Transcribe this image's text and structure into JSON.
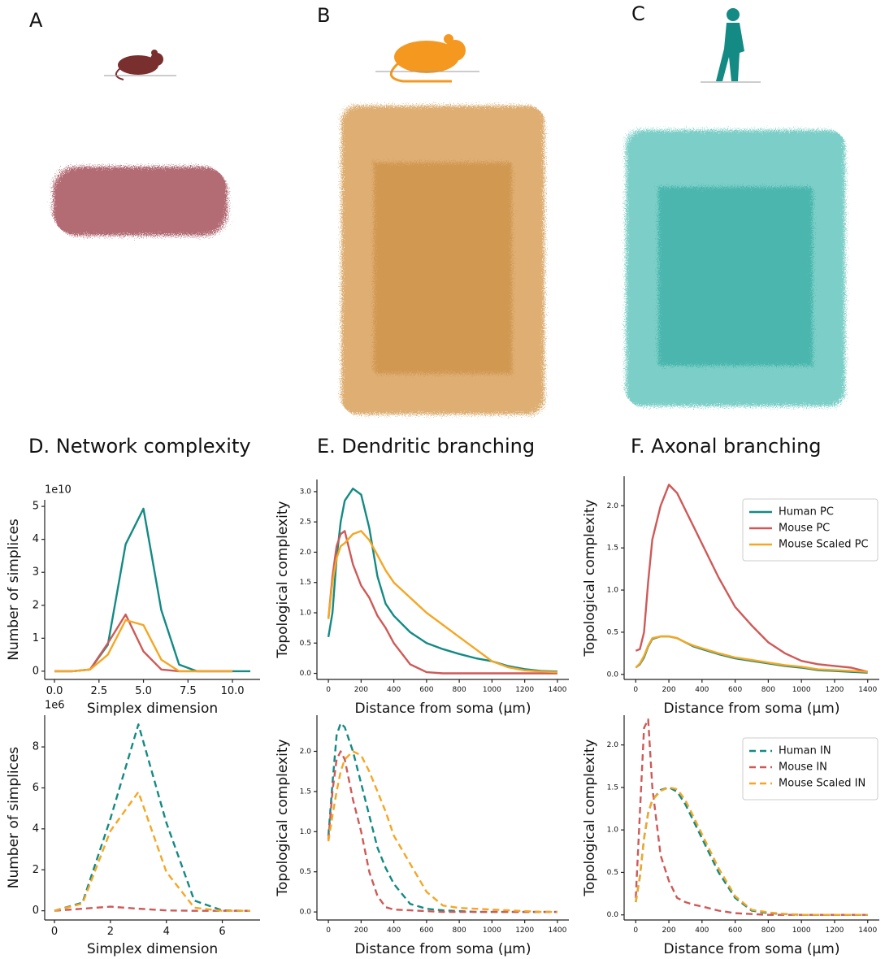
{
  "panel_labels": [
    "A",
    "B",
    "C"
  ],
  "chart_data": [
    {
      "type": "line",
      "title": "D. Network complexity",
      "xlabel": "Simplex dimension",
      "ylabel": "Number of simplices",
      "y_offset_label": "1e10",
      "x": [
        0,
        1,
        2,
        3,
        4,
        5,
        6,
        7,
        8,
        9,
        10,
        11
      ],
      "series": [
        {
          "color": "#138a83",
          "linestyle": "solid",
          "values": [
            0,
            0,
            0.05,
            0.8,
            3.85,
            4.93,
            1.85,
            0.2,
            0,
            0,
            0,
            0
          ]
        },
        {
          "color": "#cd5a58",
          "linestyle": "solid",
          "values": [
            0,
            0,
            0.05,
            0.85,
            1.72,
            0.6,
            0.05,
            0,
            0,
            0,
            0,
            null
          ]
        },
        {
          "color": "#f5a623",
          "linestyle": "solid",
          "values": [
            0,
            0,
            0.05,
            0.5,
            1.55,
            1.4,
            0.35,
            0,
            0,
            0,
            0,
            null
          ]
        }
      ],
      "xlim": [
        -0.55,
        11.55
      ],
      "ylim": [
        -0.25,
        5.2
      ],
      "xticks": [
        {
          "value": 0,
          "label": "0.0"
        },
        {
          "value": 2.5,
          "label": "2.5"
        },
        {
          "value": 5,
          "label": "5.0"
        },
        {
          "value": 7.5,
          "label": "7.5"
        },
        {
          "value": 10,
          "label": "10.0"
        }
      ],
      "yticks": [
        0,
        1,
        2,
        3,
        4,
        5
      ]
    },
    {
      "type": "line",
      "xlabel": "Simplex dimension",
      "ylabel": "Number of simplices",
      "y_offset_label": "1e6",
      "x": [
        0,
        1,
        2,
        3,
        4,
        5,
        6,
        7
      ],
      "series": [
        {
          "color": "#138a83",
          "linestyle": "dashed",
          "values": [
            0,
            0.4,
            4.5,
            9.1,
            4.3,
            0.5,
            0.02,
            0
          ]
        },
        {
          "color": "#cd5a58",
          "linestyle": "dashed",
          "values": [
            0,
            0.1,
            0.2,
            0.1,
            0.02,
            0,
            0,
            0
          ]
        },
        {
          "color": "#f5a623",
          "linestyle": "dashed",
          "values": [
            0,
            0.35,
            3.9,
            5.8,
            1.9,
            0.15,
            0,
            0
          ]
        }
      ],
      "xlim": [
        -0.35,
        7.35
      ],
      "ylim": [
        -0.45,
        9.55
      ],
      "xticks": [
        0,
        2,
        4,
        6
      ],
      "yticks": [
        0,
        2,
        4,
        6,
        8
      ]
    },
    {
      "type": "line",
      "title": "E. Dendritic branching",
      "xlabel": "Distance from soma (μm)",
      "ylabel": "Topological complexity",
      "x": [
        0,
        25,
        50,
        75,
        100,
        150,
        200,
        250,
        300,
        350,
        400,
        500,
        600,
        700,
        800,
        900,
        1000,
        1100,
        1200,
        1300,
        1400
      ],
      "series": [
        {
          "color": "#138a83",
          "linestyle": "solid",
          "values": [
            0.6,
            1.0,
            1.9,
            2.5,
            2.85,
            3.05,
            2.95,
            2.4,
            1.6,
            1.15,
            0.95,
            0.68,
            0.5,
            0.4,
            0.32,
            0.25,
            0.2,
            0.12,
            0.07,
            0.04,
            0.03
          ]
        },
        {
          "color": "#cd5a58",
          "linestyle": "solid",
          "values": [
            0.9,
            1.6,
            2.1,
            2.3,
            2.35,
            1.8,
            1.45,
            1.25,
            0.95,
            0.75,
            0.5,
            0.15,
            0.02,
            0,
            0,
            0,
            0,
            0,
            0,
            0,
            0
          ]
        },
        {
          "color": "#f5a623",
          "linestyle": "solid",
          "values": [
            0.9,
            1.5,
            1.9,
            2.1,
            2.15,
            2.3,
            2.35,
            2.2,
            1.95,
            1.7,
            1.5,
            1.25,
            1.0,
            0.8,
            0.6,
            0.4,
            0.2,
            0.1,
            0.05,
            0.03,
            0.02
          ]
        }
      ],
      "xlim": [
        -70,
        1470
      ],
      "ylim": [
        -0.1,
        3.2
      ],
      "xticks": [
        0,
        200,
        400,
        600,
        800,
        1000,
        1200,
        1400
      ],
      "yticks": [
        {
          "value": 0,
          "label": "0.0"
        },
        {
          "value": 0.5,
          "label": "0.5"
        },
        {
          "value": 1,
          "label": "1.0"
        },
        {
          "value": 1.5,
          "label": "1.5"
        },
        {
          "value": 2,
          "label": "2.0"
        },
        {
          "value": 2.5,
          "label": "2.5"
        },
        {
          "value": 3,
          "label": "3.0"
        }
      ]
    },
    {
      "type": "line",
      "xlabel": "Distance from soma (μm)",
      "ylabel": "Topological complexity",
      "x": [
        0,
        25,
        50,
        75,
        100,
        150,
        200,
        250,
        300,
        350,
        400,
        500,
        600,
        700,
        800,
        900,
        1000,
        1100,
        1200,
        1300,
        1400
      ],
      "series": [
        {
          "color": "#138a83",
          "linestyle": "dashed",
          "values": [
            0.95,
            1.6,
            2.2,
            2.35,
            2.3,
            2.0,
            1.6,
            1.2,
            0.8,
            0.55,
            0.35,
            0.1,
            0.04,
            0.02,
            0.01,
            0,
            0,
            0,
            0,
            0,
            0
          ]
        },
        {
          "color": "#cd5a58",
          "linestyle": "dashed",
          "values": [
            0.9,
            1.5,
            1.9,
            2.0,
            1.9,
            1.4,
            1.0,
            0.5,
            0.2,
            0.06,
            0.03,
            0.02,
            0.01,
            0,
            0,
            0,
            0,
            0,
            0,
            0,
            0
          ]
        },
        {
          "color": "#f5a623",
          "linestyle": "dashed",
          "values": [
            0.88,
            1.2,
            1.5,
            1.75,
            1.9,
            2.0,
            1.95,
            1.75,
            1.5,
            1.25,
            0.95,
            0.6,
            0.25,
            0.08,
            0.05,
            0.04,
            0.03,
            0.02,
            0.01,
            0,
            0
          ]
        }
      ],
      "xlim": [
        -70,
        1470
      ],
      "ylim": [
        -0.1,
        2.45
      ],
      "xticks": [
        0,
        200,
        400,
        600,
        800,
        1000,
        1200,
        1400
      ],
      "yticks": [
        {
          "value": 0,
          "label": "0.0"
        },
        {
          "value": 0.5,
          "label": "0.5"
        },
        {
          "value": 1,
          "label": "1.0"
        },
        {
          "value": 1.5,
          "label": "1.5"
        },
        {
          "value": 2,
          "label": "2.0"
        }
      ]
    },
    {
      "type": "line",
      "title": "F. Axonal branching",
      "xlabel": "Distance from soma (μm)",
      "ylabel": "Topological complexity",
      "legend": "upper right",
      "x": [
        0,
        25,
        50,
        75,
        100,
        150,
        200,
        250,
        300,
        350,
        400,
        500,
        600,
        700,
        800,
        900,
        1000,
        1100,
        1200,
        1300,
        1400
      ],
      "series": [
        {
          "name": "Human PC",
          "color": "#138a83",
          "linestyle": "solid",
          "values": [
            0.08,
            0.12,
            0.2,
            0.33,
            0.42,
            0.45,
            0.45,
            0.43,
            0.38,
            0.33,
            0.3,
            0.24,
            0.19,
            0.16,
            0.13,
            0.1,
            0.08,
            0.05,
            0.04,
            0.03,
            0.02
          ]
        },
        {
          "name": "Mouse PC",
          "color": "#cd5a58",
          "linestyle": "solid",
          "values": [
            0.28,
            0.3,
            0.5,
            1.1,
            1.6,
            2.0,
            2.25,
            2.15,
            1.95,
            1.75,
            1.55,
            1.15,
            0.8,
            0.58,
            0.38,
            0.25,
            0.16,
            0.12,
            0.1,
            0.08,
            0.03
          ]
        },
        {
          "name": "Mouse Scaled PC",
          "color": "#f5a623",
          "linestyle": "solid",
          "values": [
            0.08,
            0.13,
            0.22,
            0.34,
            0.43,
            0.45,
            0.45,
            0.43,
            0.38,
            0.34,
            0.31,
            0.25,
            0.2,
            0.17,
            0.14,
            0.11,
            0.09,
            0.06,
            0.05,
            0.04,
            0.03
          ]
        }
      ],
      "xlim": [
        -70,
        1470
      ],
      "ylim": [
        -0.06,
        2.35
      ],
      "xticks": [
        0,
        200,
        400,
        600,
        800,
        1000,
        1200,
        1400
      ],
      "yticks": [
        {
          "value": 0,
          "label": "0.0"
        },
        {
          "value": 0.5,
          "label": "0.5"
        },
        {
          "value": 1,
          "label": "1.0"
        },
        {
          "value": 1.5,
          "label": "1.5"
        },
        {
          "value": 2,
          "label": "2.0"
        }
      ]
    },
    {
      "type": "line",
      "xlabel": "Distance from soma (μm)",
      "ylabel": "Topological complexity",
      "legend": "upper right",
      "x": [
        0,
        25,
        50,
        75,
        100,
        150,
        200,
        250,
        300,
        350,
        400,
        500,
        600,
        700,
        800,
        900,
        1000,
        1100,
        1200,
        1300,
        1400
      ],
      "series": [
        {
          "name": "Human IN",
          "color": "#138a83",
          "linestyle": "dashed",
          "values": [
            0.15,
            0.45,
            0.9,
            1.2,
            1.35,
            1.47,
            1.5,
            1.45,
            1.3,
            1.1,
            0.9,
            0.5,
            0.2,
            0.05,
            0.02,
            0.01,
            0,
            0,
            0,
            0,
            0
          ]
        },
        {
          "name": "Mouse IN",
          "color": "#cd5a58",
          "linestyle": "dashed",
          "values": [
            0.2,
            1.2,
            2.2,
            2.3,
            1.5,
            0.7,
            0.4,
            0.2,
            0.15,
            0.12,
            0.1,
            0.05,
            0.02,
            0.01,
            0,
            0,
            0,
            0,
            0,
            0,
            0
          ]
        },
        {
          "name": "Mouse Scaled IN",
          "color": "#f5a623",
          "linestyle": "dashed",
          "values": [
            0.15,
            0.45,
            0.9,
            1.2,
            1.35,
            1.46,
            1.5,
            1.48,
            1.35,
            1.15,
            0.95,
            0.55,
            0.22,
            0.06,
            0.03,
            0.01,
            0,
            0,
            0,
            0,
            0
          ]
        }
      ],
      "xlim": [
        -70,
        1470
      ],
      "ylim": [
        -0.06,
        2.35
      ],
      "xticks": [
        0,
        200,
        400,
        600,
        800,
        1000,
        1200,
        1400
      ],
      "yticks": [
        {
          "value": 0,
          "label": "0.0"
        },
        {
          "value": 0.5,
          "label": "0.5"
        },
        {
          "value": 1,
          "label": "1.0"
        },
        {
          "value": 1.5,
          "label": "1.5"
        },
        {
          "value": 2,
          "label": "2.0"
        }
      ]
    }
  ]
}
